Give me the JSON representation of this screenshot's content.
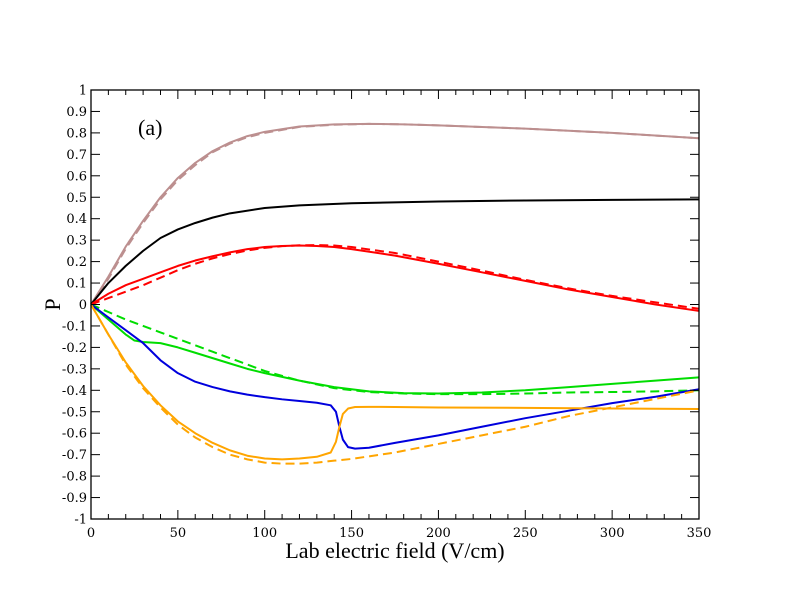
{
  "chart_data": {
    "type": "line",
    "title": "",
    "annotation": "(a)",
    "xlabel": "Lab electric field (V/cm)",
    "ylabel": "P",
    "xlim": [
      0,
      350
    ],
    "ylim": [
      -1,
      1
    ],
    "grid": false,
    "xticks": [
      0,
      50,
      100,
      150,
      200,
      250,
      300,
      350
    ],
    "xtick_labels": [
      "0",
      "50",
      "100",
      "150",
      "200",
      "250",
      "300",
      "350"
    ],
    "yticks": [
      -1,
      -0.9,
      -0.8,
      -0.7,
      -0.6,
      -0.5,
      -0.4,
      -0.3,
      -0.2,
      -0.1,
      0,
      0.1,
      0.2,
      0.3,
      0.4,
      0.5,
      0.6,
      0.7,
      0.8,
      0.9,
      1
    ],
    "ytick_labels": [
      "-1",
      "-0.9",
      "-0.8",
      "-0.7",
      "-0.6",
      "-0.5",
      "-0.4",
      "-0.3",
      "-0.2",
      "-0.1",
      "0",
      "0.1",
      "0.2",
      "0.3",
      "0.4",
      "0.5",
      "0.6",
      "0.7",
      "0.8",
      "0.9",
      "1"
    ],
    "series": [
      {
        "name": "rosy-brown-solid",
        "color": "#bc8f8f",
        "style": "solid",
        "x": [
          0,
          10,
          20,
          30,
          40,
          50,
          60,
          70,
          80,
          90,
          100,
          120,
          140,
          160,
          180,
          200,
          250,
          300,
          350
        ],
        "y": [
          0,
          0.13,
          0.27,
          0.39,
          0.5,
          0.59,
          0.66,
          0.715,
          0.755,
          0.785,
          0.805,
          0.83,
          0.84,
          0.842,
          0.84,
          0.835,
          0.82,
          0.8,
          0.775
        ]
      },
      {
        "name": "rosy-brown-dashed",
        "color": "#bc8f8f",
        "style": "dashed",
        "x": [
          0,
          10,
          20,
          30,
          40,
          50,
          60,
          70,
          80,
          90,
          100,
          120,
          140,
          160,
          180,
          200,
          250,
          300,
          350
        ],
        "y": [
          0,
          0.12,
          0.26,
          0.38,
          0.49,
          0.58,
          0.65,
          0.71,
          0.75,
          0.78,
          0.8,
          0.828,
          0.838,
          0.842,
          0.84,
          0.835,
          0.82,
          0.8,
          0.775
        ]
      },
      {
        "name": "black-solid",
        "color": "#000000",
        "style": "solid",
        "x": [
          0,
          10,
          20,
          30,
          40,
          50,
          60,
          70,
          80,
          100,
          120,
          150,
          200,
          250,
          300,
          350
        ],
        "y": [
          0,
          0.1,
          0.18,
          0.25,
          0.31,
          0.35,
          0.38,
          0.405,
          0.425,
          0.45,
          0.462,
          0.472,
          0.48,
          0.485,
          0.488,
          0.49
        ]
      },
      {
        "name": "red-solid",
        "color": "#ff0000",
        "style": "solid",
        "x": [
          0,
          10,
          20,
          30,
          40,
          50,
          60,
          70,
          80,
          90,
          100,
          110,
          120,
          130,
          140,
          150,
          175,
          200,
          225,
          250,
          275,
          300,
          325,
          350
        ],
        "y": [
          0,
          0.05,
          0.09,
          0.12,
          0.15,
          0.18,
          0.205,
          0.225,
          0.243,
          0.258,
          0.268,
          0.273,
          0.275,
          0.273,
          0.268,
          0.258,
          0.228,
          0.19,
          0.15,
          0.11,
          0.07,
          0.035,
          0.0,
          -0.03
        ]
      },
      {
        "name": "red-dashed",
        "color": "#ff0000",
        "style": "dashed",
        "x": [
          0,
          10,
          20,
          30,
          40,
          50,
          60,
          70,
          80,
          90,
          100,
          110,
          120,
          130,
          140,
          150,
          175,
          200,
          225,
          250,
          275,
          300,
          325,
          350
        ],
        "y": [
          0,
          0.03,
          0.06,
          0.09,
          0.125,
          0.16,
          0.19,
          0.215,
          0.235,
          0.252,
          0.264,
          0.272,
          0.276,
          0.277,
          0.275,
          0.268,
          0.24,
          0.2,
          0.158,
          0.115,
          0.075,
          0.04,
          0.01,
          -0.02
        ]
      },
      {
        "name": "green-solid",
        "color": "#00dd00",
        "style": "solid",
        "x": [
          0,
          10,
          20,
          25,
          30,
          40,
          50,
          60,
          70,
          80,
          90,
          100,
          120,
          140,
          160,
          180,
          200,
          225,
          250,
          275,
          300,
          325,
          350
        ],
        "y": [
          0,
          -0.07,
          -0.14,
          -0.168,
          -0.175,
          -0.18,
          -0.2,
          -0.225,
          -0.25,
          -0.275,
          -0.3,
          -0.32,
          -0.355,
          -0.385,
          -0.405,
          -0.413,
          -0.415,
          -0.41,
          -0.4,
          -0.385,
          -0.37,
          -0.355,
          -0.34
        ]
      },
      {
        "name": "green-dashed",
        "color": "#00dd00",
        "style": "dashed",
        "x": [
          0,
          10,
          20,
          30,
          40,
          50,
          60,
          70,
          80,
          90,
          100,
          120,
          140,
          160,
          180,
          200,
          225,
          250,
          275,
          300,
          325,
          350
        ],
        "y": [
          0,
          -0.035,
          -0.07,
          -0.1,
          -0.13,
          -0.16,
          -0.19,
          -0.22,
          -0.25,
          -0.28,
          -0.31,
          -0.355,
          -0.39,
          -0.408,
          -0.415,
          -0.418,
          -0.418,
          -0.415,
          -0.41,
          -0.408,
          -0.405,
          -0.4
        ]
      },
      {
        "name": "blue-solid",
        "color": "#0000dd",
        "style": "solid",
        "x": [
          0,
          10,
          20,
          30,
          40,
          50,
          60,
          70,
          80,
          90,
          100,
          110,
          120,
          130,
          138,
          141,
          143,
          145,
          148,
          152,
          160,
          175,
          200,
          225,
          250,
          275,
          300,
          325,
          350
        ],
        "y": [
          0,
          -0.06,
          -0.12,
          -0.18,
          -0.26,
          -0.32,
          -0.36,
          -0.385,
          -0.405,
          -0.42,
          -0.432,
          -0.442,
          -0.45,
          -0.458,
          -0.47,
          -0.5,
          -0.57,
          -0.63,
          -0.665,
          -0.672,
          -0.668,
          -0.645,
          -0.61,
          -0.57,
          -0.53,
          -0.495,
          -0.46,
          -0.43,
          -0.395
        ]
      },
      {
        "name": "orange-solid",
        "color": "#ffa500",
        "style": "solid",
        "x": [
          0,
          10,
          20,
          30,
          40,
          50,
          60,
          70,
          80,
          90,
          100,
          110,
          120,
          130,
          138,
          141,
          143,
          145,
          148,
          152,
          160,
          175,
          200,
          250,
          300,
          350
        ],
        "y": [
          0,
          -0.14,
          -0.27,
          -0.38,
          -0.47,
          -0.545,
          -0.6,
          -0.645,
          -0.68,
          -0.705,
          -0.718,
          -0.722,
          -0.718,
          -0.71,
          -0.69,
          -0.64,
          -0.57,
          -0.51,
          -0.485,
          -0.478,
          -0.477,
          -0.478,
          -0.48,
          -0.482,
          -0.485,
          -0.487
        ]
      },
      {
        "name": "orange-dashed",
        "color": "#ffa500",
        "style": "dashed",
        "x": [
          0,
          10,
          20,
          30,
          40,
          50,
          60,
          70,
          80,
          90,
          100,
          110,
          120,
          130,
          140,
          150,
          175,
          200,
          225,
          250,
          275,
          300,
          325,
          350
        ],
        "y": [
          0,
          -0.14,
          -0.28,
          -0.39,
          -0.48,
          -0.56,
          -0.62,
          -0.665,
          -0.7,
          -0.722,
          -0.737,
          -0.742,
          -0.742,
          -0.737,
          -0.728,
          -0.72,
          -0.69,
          -0.65,
          -0.61,
          -0.57,
          -0.52,
          -0.48,
          -0.44,
          -0.4
        ]
      }
    ]
  }
}
